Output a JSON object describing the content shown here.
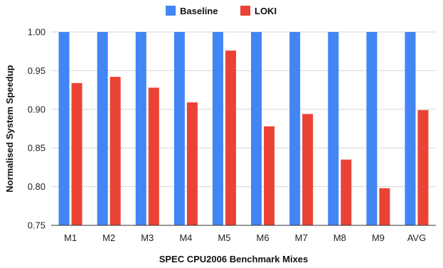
{
  "chart_data": {
    "type": "bar",
    "title": "",
    "xlabel": "SPEC CPU2006 Benchmark Mixes",
    "ylabel": "Normalised System Speedup",
    "ylim": [
      0.75,
      1.0
    ],
    "yticks": [
      0.75,
      0.8,
      0.85,
      0.9,
      0.95,
      1.0
    ],
    "ytick_labels": [
      "0.75",
      "0.80",
      "0.85",
      "0.90",
      "0.95",
      "1.00"
    ],
    "grid": true,
    "legend": "top-center",
    "categories": [
      "M1",
      "M2",
      "M3",
      "M4",
      "M5",
      "M6",
      "M7",
      "M8",
      "M9",
      "AVG"
    ],
    "series": [
      {
        "name": "Baseline",
        "color": "#4285f4",
        "values": [
          1.0,
          1.0,
          1.0,
          1.0,
          1.0,
          1.0,
          1.0,
          1.0,
          1.0,
          1.0
        ]
      },
      {
        "name": "LOKI",
        "color": "#ea4335",
        "values": [
          0.934,
          0.942,
          0.928,
          0.909,
          0.976,
          0.878,
          0.894,
          0.835,
          0.798,
          0.899
        ]
      }
    ]
  }
}
